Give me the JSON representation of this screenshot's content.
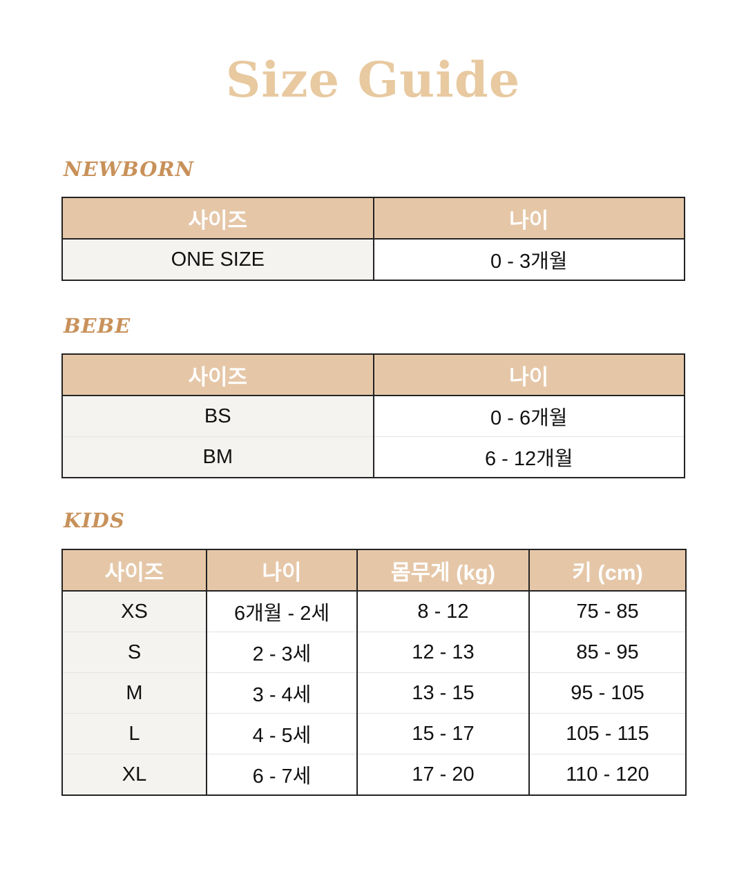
{
  "title": "Size Guide",
  "newborn": {
    "label": "NEWBORN",
    "headers": [
      "사이즈",
      "나이"
    ],
    "rows": [
      [
        "ONE SIZE",
        "0 - 3개월"
      ]
    ]
  },
  "bebe": {
    "label": "BEBE",
    "headers": [
      "사이즈",
      "나이"
    ],
    "rows": [
      [
        "BS",
        "0 - 6개월"
      ],
      [
        "BM",
        "6 - 12개월"
      ]
    ]
  },
  "kids": {
    "label": "KIDS",
    "headers": [
      "사이즈",
      "나이",
      "몸무게 (kg)",
      "키 (cm)"
    ],
    "rows": [
      [
        "XS",
        "6개월 - 2세",
        "8 - 12",
        "75 - 85"
      ],
      [
        "S",
        "2 - 3세",
        "12 - 13",
        "85 - 95"
      ],
      [
        "M",
        "3 - 4세",
        "13 - 15",
        "95 - 105"
      ],
      [
        "L",
        "4 - 5세",
        "15 - 17",
        "105 - 115"
      ],
      [
        "XL",
        "6 - 7세",
        "17 - 20",
        "110 - 120"
      ]
    ]
  },
  "colors": {
    "header_bg": "#e5c7a8",
    "section_label": "#c8915a",
    "title": "#e8c9a0",
    "size_col_bg": "#f4f3f0"
  }
}
